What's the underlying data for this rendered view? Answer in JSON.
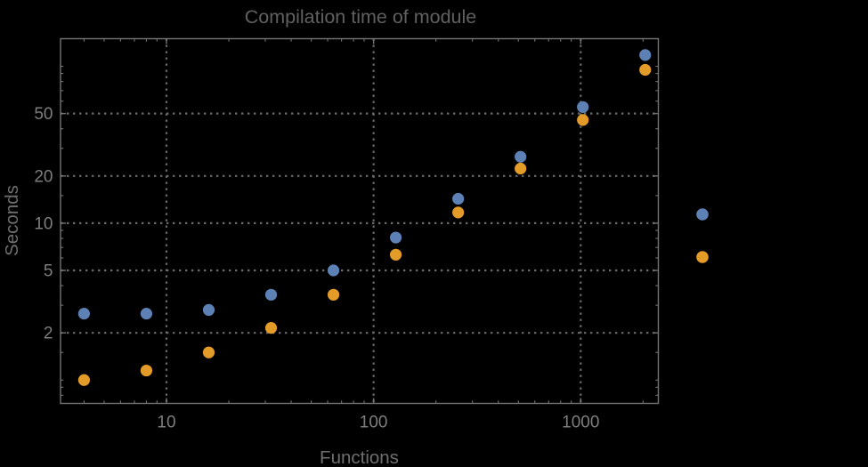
{
  "window": {
    "background": "#000000"
  },
  "chart_data": {
    "type": "scatter",
    "title": "Compilation time of module",
    "xlabel": "Functions",
    "ylabel": "Seconds",
    "x_scale": "log",
    "y_scale": "log",
    "xlim": [
      3.08,
      2370
    ],
    "ylim": [
      0.71,
      150
    ],
    "grid": "dotted lines at labeled major ticks, both axes",
    "x": [
      4,
      8,
      16,
      32,
      64,
      128,
      256,
      512,
      1024,
      2048
    ],
    "series": [
      {
        "name": "series-1-blue",
        "color": "#5e81b5",
        "values": [
          2.65,
          2.65,
          2.8,
          3.5,
          5.0,
          8.1,
          14.3,
          26.5,
          55,
          118
        ]
      },
      {
        "name": "series-2-orange",
        "color": "#e39c27",
        "values": [
          1.0,
          1.15,
          1.5,
          2.15,
          3.5,
          6.3,
          11.7,
          22.3,
          45.5,
          95
        ]
      }
    ],
    "x_ticks": {
      "major": [
        10,
        100,
        1000
      ],
      "major_labels": [
        "10",
        "100",
        "1000"
      ],
      "minor": [
        4,
        5,
        6,
        7,
        8,
        9,
        20,
        30,
        40,
        50,
        60,
        70,
        80,
        90,
        200,
        300,
        400,
        500,
        600,
        700,
        800,
        900,
        2000
      ]
    },
    "y_ticks": {
      "major": [
        2,
        5,
        10,
        20,
        50
      ],
      "major_labels": [
        "2",
        "5",
        "10",
        "20",
        "50"
      ],
      "minor": [
        0.8,
        0.9,
        1,
        1.5,
        3,
        4,
        6,
        7,
        8,
        9,
        15,
        30,
        40,
        60,
        70,
        80,
        90,
        100
      ]
    },
    "legend": {
      "position": "outside-right",
      "labels_visible": false,
      "markers": [
        {
          "color": "#5e81b5"
        },
        {
          "color": "#e39c27"
        }
      ]
    },
    "colors": {
      "background": "#000000",
      "frame": "#747474",
      "grid": "#6b6b6b",
      "tick_label": "#7d7d7d",
      "axis_label": "#6f6f6f",
      "title": "#606060",
      "point_blue": "#5e81b5",
      "point_orange": "#e39c27"
    }
  }
}
